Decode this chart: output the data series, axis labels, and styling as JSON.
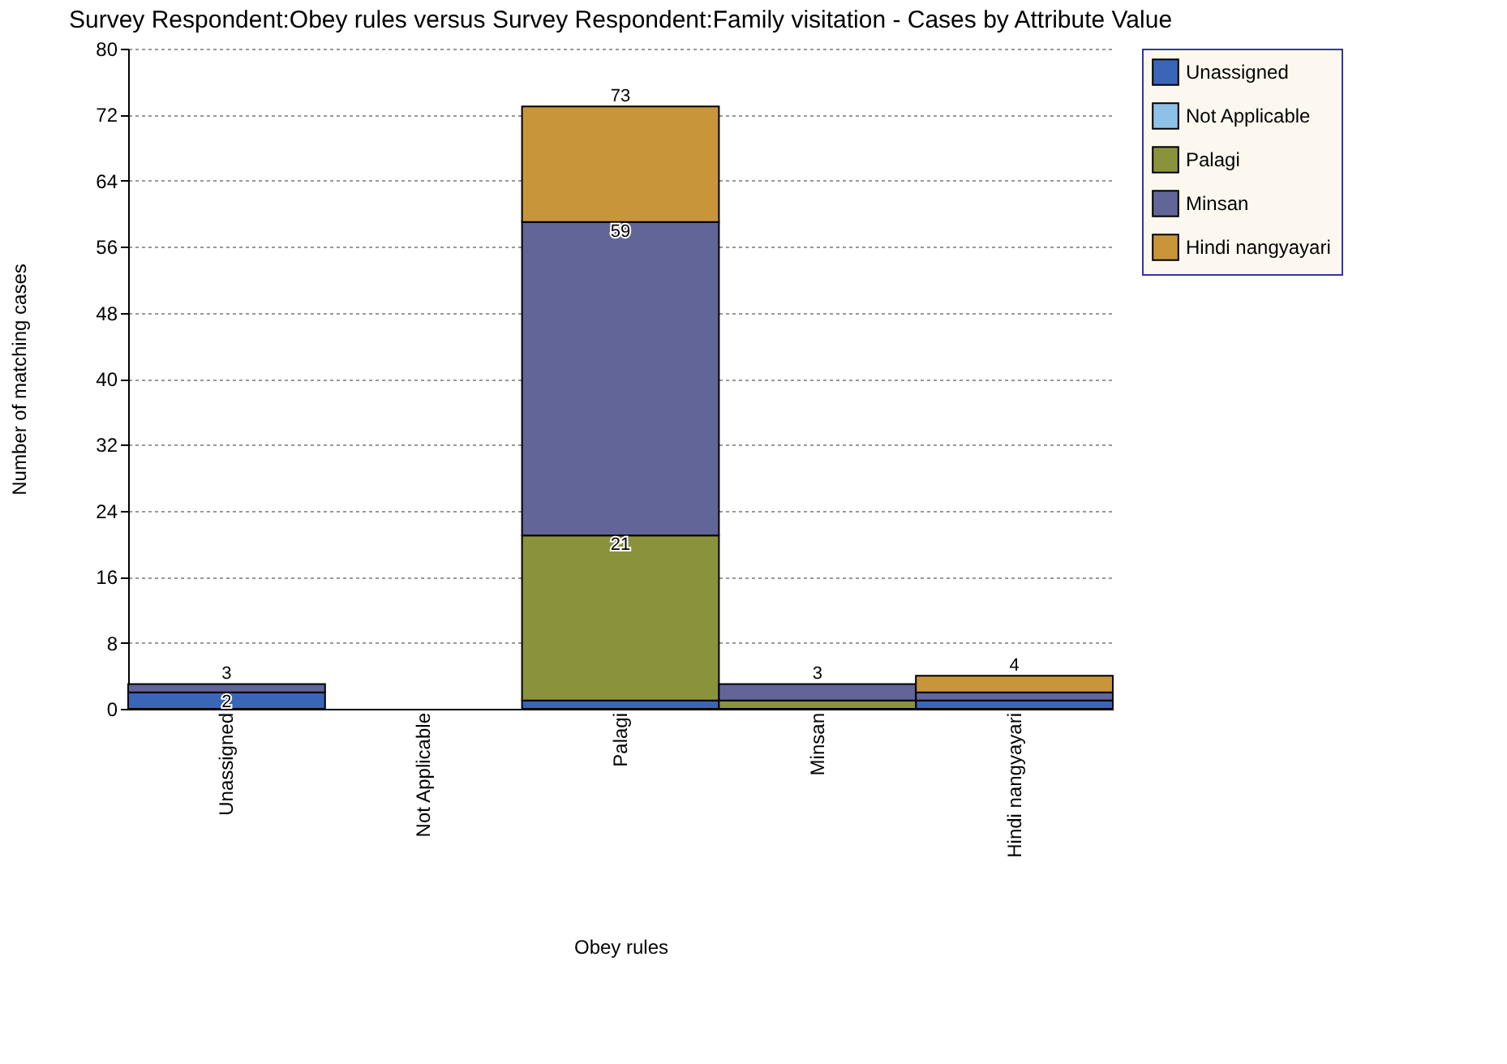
{
  "chart_data": {
    "type": "bar",
    "stacked": true,
    "title": "Survey Respondent:Obey rules versus Survey Respondent:Family visitation - Cases by Attribute Value",
    "xlabel": "Obey rules",
    "ylabel": "Number of matching cases",
    "categories": [
      "Unassigned",
      "Not Applicable",
      "Palagi",
      "Minsan",
      "Hindi nangyayari"
    ],
    "series": [
      {
        "name": "Unassigned",
        "color": "#3a66b8",
        "values": [
          2,
          0,
          1,
          0,
          1
        ]
      },
      {
        "name": "Not Applicable",
        "color": "#8ec1e8",
        "values": [
          0,
          0,
          0,
          0,
          0
        ]
      },
      {
        "name": "Palagi",
        "color": "#8b923c",
        "values": [
          0,
          0,
          20,
          1,
          0
        ]
      },
      {
        "name": "Minsan",
        "color": "#626598",
        "values": [
          1,
          0,
          38,
          2,
          1
        ]
      },
      {
        "name": "Hindi nangyayari",
        "color": "#c8953a",
        "values": [
          0,
          0,
          14,
          0,
          2
        ]
      }
    ],
    "annotations": [
      {
        "text": "2",
        "x": "Unassigned",
        "y": 2
      },
      {
        "text": "3",
        "x": "Unassigned",
        "y": 3
      },
      {
        "text": "21",
        "x": "Palagi",
        "y": 21
      },
      {
        "text": "59",
        "x": "Palagi",
        "y": 59
      },
      {
        "text": "73",
        "x": "Palagi",
        "y": 73
      },
      {
        "text": "3",
        "x": "Minsan",
        "y": 3
      },
      {
        "text": "4",
        "x": "Hindi nangyayari",
        "y": 4
      }
    ],
    "ylim": [
      0,
      80
    ],
    "yticks": [
      0,
      8,
      16,
      24,
      32,
      40,
      48,
      56,
      64,
      72,
      80
    ],
    "grid": "y",
    "legend": "right"
  }
}
